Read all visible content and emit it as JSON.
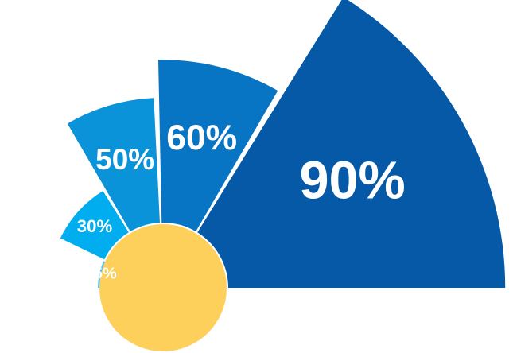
{
  "chart_data": {
    "type": "pie",
    "categories": [
      "15%",
      "30%",
      "50%",
      "60%",
      "90%"
    ],
    "values": [
      15,
      30,
      50,
      60,
      90
    ],
    "colors": [
      "#4FC3F7",
      "#00ADEF",
      "#0A93D9",
      "#0774C4",
      "#0659A7"
    ],
    "hub_color": "#FDD05B",
    "value_scale": "radius proportional to value",
    "legend": "none",
    "grid": false
  }
}
